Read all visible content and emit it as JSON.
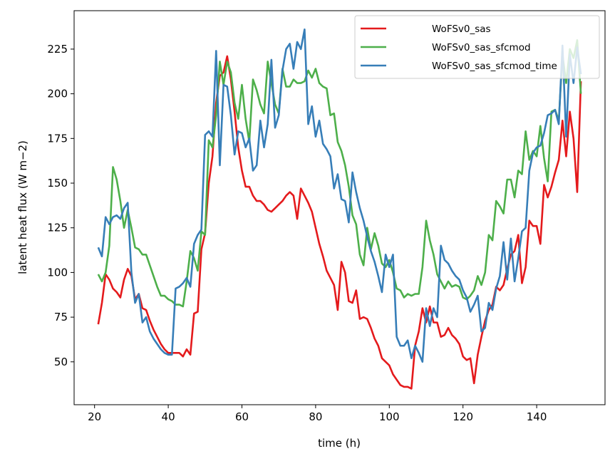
{
  "chart_data": {
    "type": "line",
    "xlabel": "time (h)",
    "ylabel": "latent heat flux (W m−2)",
    "xlim": [
      14.45,
      158.55
    ],
    "ylim": [
      26,
      246.5
    ],
    "xticks": [
      20,
      40,
      60,
      80,
      100,
      120,
      140
    ],
    "yticks": [
      50,
      75,
      100,
      125,
      150,
      175,
      200,
      225
    ],
    "legend": "upper right",
    "grid": false,
    "x": [
      21,
      22,
      23,
      24,
      25,
      26,
      27,
      28,
      29,
      30,
      31,
      32,
      33,
      34,
      35,
      36,
      37,
      38,
      39,
      40,
      41,
      42,
      43,
      44,
      45,
      46,
      47,
      48,
      49,
      50,
      51,
      52,
      53,
      54,
      55,
      56,
      57,
      58,
      59,
      60,
      61,
      62,
      63,
      64,
      65,
      66,
      67,
      68,
      69,
      70,
      71,
      72,
      73,
      74,
      75,
      76,
      77,
      78,
      79,
      80,
      81,
      82,
      83,
      84,
      85,
      86,
      87,
      88,
      89,
      90,
      91,
      92,
      93,
      94,
      95,
      96,
      97,
      98,
      99,
      100,
      101,
      102,
      103,
      104,
      105,
      106,
      107,
      108,
      109,
      110,
      111,
      112,
      113,
      114,
      115,
      116,
      117,
      118,
      119,
      120,
      121,
      122,
      123,
      124,
      125,
      126,
      127,
      128,
      129,
      130,
      131,
      132,
      133,
      134,
      135,
      136,
      137,
      138,
      139,
      140,
      141,
      142,
      143,
      144,
      145,
      146,
      147,
      148,
      149,
      150,
      151,
      152
    ],
    "series": [
      {
        "name": "WoFSv0_sas",
        "color": "#e41a1c",
        "values": [
          71,
          83,
          99,
          96,
          91,
          89,
          86,
          96,
          102,
          98,
          85,
          88,
          80,
          79,
          73,
          68,
          64,
          60,
          57,
          55,
          55,
          55,
          55,
          53,
          57,
          54,
          77,
          78,
          113,
          122,
          150,
          165,
          195,
          210,
          212,
          221,
          208,
          190,
          170,
          157,
          148,
          148,
          143,
          140,
          140,
          138,
          135,
          134,
          136,
          138,
          140,
          143,
          145,
          143,
          130,
          147,
          143,
          139,
          134,
          125,
          116,
          109,
          101,
          97,
          93,
          79,
          106,
          100,
          84,
          83,
          90,
          74,
          75,
          74,
          69,
          63,
          59,
          52,
          50,
          48,
          43,
          40,
          37,
          36,
          36,
          35,
          59,
          67,
          80,
          72,
          81,
          72,
          72,
          64,
          65,
          69,
          65,
          63,
          60,
          53,
          51,
          52,
          38,
          54,
          64,
          73,
          79,
          82,
          92,
          90,
          93,
          102,
          110,
          112,
          121,
          94,
          103,
          129,
          126,
          126,
          116,
          149,
          142,
          148,
          156,
          163,
          185,
          165,
          190,
          175,
          145,
          207
        ]
      },
      {
        "name": "WoFSv0_sas_sfcmod",
        "color": "#4daf4a",
        "values": [
          99,
          95,
          100,
          115,
          159,
          152,
          140,
          125,
          135,
          125,
          114,
          113,
          110,
          110,
          104,
          98,
          92,
          87,
          87,
          85,
          84,
          82,
          82,
          81,
          95,
          112,
          108,
          101,
          123,
          121,
          174,
          170,
          188,
          218,
          205,
          218,
          212,
          195,
          186,
          205,
          186,
          173,
          208,
          202,
          194,
          189,
          218,
          206,
          194,
          189,
          214,
          204,
          204,
          208,
          206,
          206,
          207,
          213,
          209,
          214,
          206,
          204,
          203,
          188,
          189,
          173,
          168,
          160,
          148,
          132,
          127,
          110,
          104,
          125,
          113,
          122,
          115,
          105,
          103,
          107,
          100,
          91,
          90,
          86,
          88,
          87,
          88,
          88,
          103,
          129,
          118,
          110,
          99,
          95,
          91,
          95,
          92,
          93,
          92,
          86,
          85,
          87,
          90,
          98,
          93,
          100,
          121,
          118,
          140,
          137,
          133,
          152,
          152,
          142,
          157,
          155,
          179,
          163,
          168,
          165,
          182,
          164,
          151,
          190,
          191,
          185,
          222,
          206,
          225,
          220,
          230,
          200
        ]
      },
      {
        "name": "WoFSv0_sas_sfcmod_time",
        "color": "#377eb8",
        "values": [
          114,
          109,
          131,
          127,
          131,
          132,
          130,
          136,
          139,
          100,
          83,
          88,
          72,
          75,
          67,
          63,
          60,
          57,
          55,
          54,
          54,
          91,
          92,
          94,
          97,
          92,
          116,
          121,
          124,
          177,
          179,
          176,
          224,
          160,
          205,
          204,
          188,
          166,
          179,
          178,
          170,
          175,
          157,
          160,
          185,
          170,
          183,
          219,
          181,
          188,
          213,
          225,
          228,
          214,
          229,
          225,
          236,
          183,
          193,
          176,
          185,
          172,
          169,
          165,
          147,
          155,
          141,
          140,
          128,
          156,
          145,
          136,
          129,
          120,
          112,
          106,
          98,
          89,
          110,
          103,
          110,
          64,
          59,
          59,
          62,
          52,
          59,
          55,
          50,
          80,
          70,
          80,
          75,
          115,
          107,
          105,
          101,
          98,
          96,
          90,
          86,
          78,
          82,
          87,
          67,
          69,
          83,
          79,
          91,
          98,
          117,
          96,
          119,
          95,
          108,
          123,
          125,
          157,
          167,
          170,
          171,
          178,
          188,
          189,
          191,
          183,
          227,
          176,
          222,
          206,
          226,
          211
        ]
      }
    ]
  }
}
